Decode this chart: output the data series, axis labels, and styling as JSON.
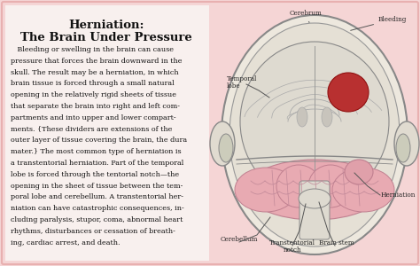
{
  "bg_color": "#f5d5d5",
  "border_color": "#e8b0b0",
  "title_line1": "Herniation:",
  "title_line2": "The Brain Under Pressure",
  "title_fontsize": 9.5,
  "body_fontsize": 5.8,
  "body_text_lines": [
    "   Bleeding or swelling in the brain can cause",
    "pressure that forces the brain downward in the",
    "skull. The result may be a herniation, in which",
    "brain tissue is forced through a small natural",
    "opening in the relatively rigid sheets of tissue",
    "that separate the brain into right and left com-",
    "partments and into upper and lower compart-",
    "ments. {These dividers are extensions of the",
    "outer layer of tissue covering the brain, the dura",
    "mater.} The most common type of herniation is",
    "a transtentorial herniation. Part of the temporal",
    "lobe is forced through the tentorial notch—the",
    "opening in the sheet of tissue between the tem-",
    "poral lobe and cerebellum. A transtentorial her-",
    "niation can have catastrophic consequences, in-",
    "cluding paralysis, stupor, coma, abnormal heart",
    "rhythms, disturbances or cessation of breath-",
    "ing, cardiac arrest, and death."
  ],
  "skull_color": "#e8e4dc",
  "skull_edge": "#888888",
  "brain_color": "#dedad0",
  "brain_edge": "#888888",
  "cereb_color": "#e8aab2",
  "cereb_edge": "#c08090",
  "bleed_color": "#b83030",
  "bleed_edge": "#901010",
  "stem_color": "#dedad0",
  "label_fontsize": 5.2,
  "label_color": "#222222",
  "arrow_color": "#555555"
}
